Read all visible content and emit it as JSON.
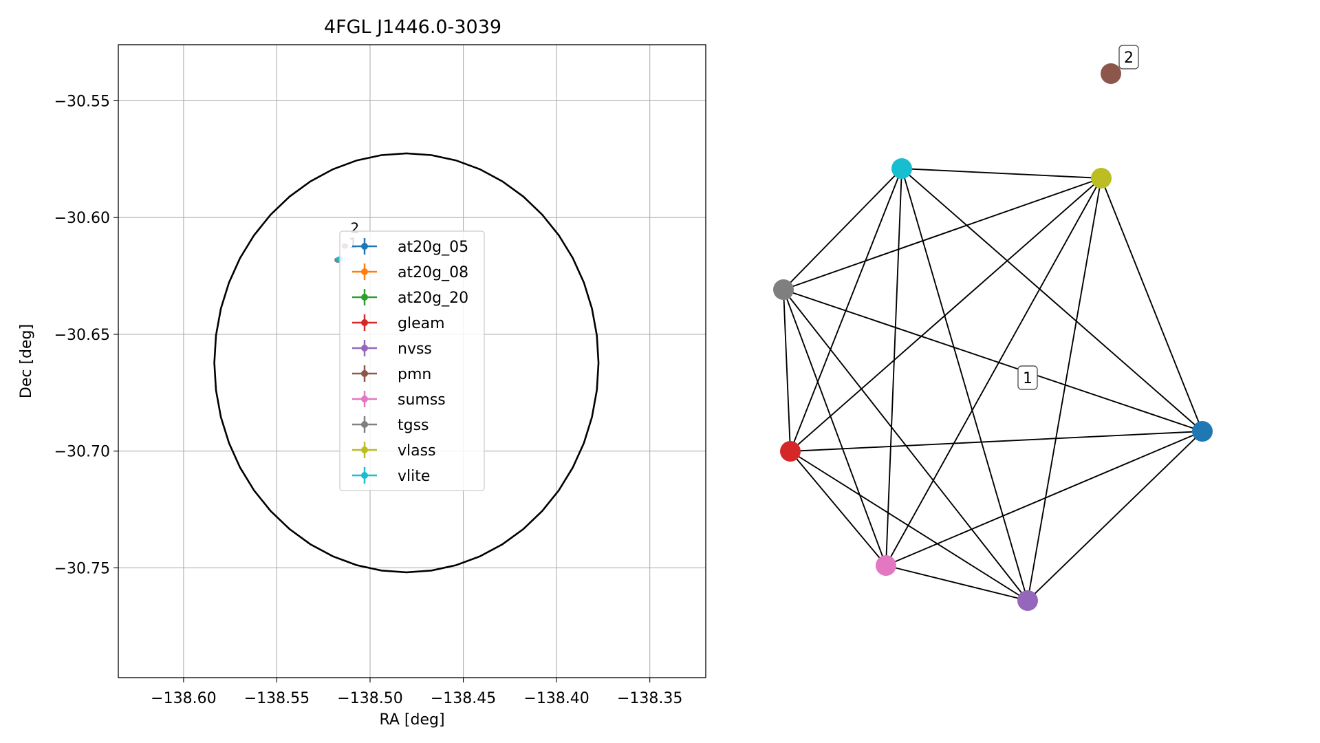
{
  "chart_data": [
    {
      "type": "scatter",
      "title": "4FGL J1446.0-3039",
      "xlabel": "RA [deg]",
      "ylabel": "Dec [deg]",
      "xlim": [
        -138.635,
        -138.32
      ],
      "ylim": [
        -30.797,
        -30.526
      ],
      "xticks": [
        -138.6,
        -138.55,
        -138.5,
        -138.45,
        -138.4,
        -138.35
      ],
      "xtick_labels": [
        "−138.60",
        "−138.55",
        "−138.50",
        "−138.45",
        "−138.40",
        "−138.35"
      ],
      "yticks": [
        -30.55,
        -30.6,
        -30.65,
        -30.7,
        -30.75
      ],
      "ytick_labels": [
        "−30.55",
        "−30.60",
        "−30.65",
        "−30.70",
        "−30.75"
      ],
      "grid": true,
      "legend_position": "center",
      "ellipse": {
        "center": [
          -138.4805,
          -30.6622
        ],
        "radius_ra": 0.103,
        "radius_dec": 0.0897,
        "color": "#000000"
      },
      "series": [
        {
          "name": "at20g_05",
          "color": "#1f77b4",
          "points": []
        },
        {
          "name": "at20g_08",
          "color": "#ff7f0e",
          "points": []
        },
        {
          "name": "at20g_20",
          "color": "#2ca02c",
          "points": []
        },
        {
          "name": "gleam",
          "color": "#d62728",
          "points": []
        },
        {
          "name": "nvss",
          "color": "#9467bd",
          "points": []
        },
        {
          "name": "pmn",
          "color": "#8c564b",
          "points": [
            [
              -138.5135,
              -30.6122
            ]
          ]
        },
        {
          "name": "sumss",
          "color": "#e377c2",
          "points": []
        },
        {
          "name": "tgss",
          "color": "#7f7f7f",
          "points": [
            [
              -138.5173,
              -30.6182
            ]
          ]
        },
        {
          "name": "vlass",
          "color": "#bcbd22",
          "points": []
        },
        {
          "name": "vlite",
          "color": "#17becf",
          "points": [
            [
              -138.5163,
              -30.6178
            ]
          ]
        }
      ],
      "cluster_labels": [
        {
          "text": "2",
          "ra": -138.5105,
          "dec": -30.6065
        },
        {
          "text": "1",
          "ra": -138.5115,
          "dec": -30.613
        }
      ]
    },
    {
      "type": "network",
      "nodes": [
        {
          "id": "at20g_05",
          "color": "#1f77b4"
        },
        {
          "id": "nvss",
          "color": "#9467bd"
        },
        {
          "id": "sumss",
          "color": "#e377c2"
        },
        {
          "id": "gleam",
          "color": "#d62728"
        },
        {
          "id": "tgss",
          "color": "#7f7f7f"
        },
        {
          "id": "vlite",
          "color": "#17becf"
        },
        {
          "id": "vlass",
          "color": "#bcbd22"
        },
        {
          "id": "pmn",
          "color": "#8c564b"
        }
      ],
      "edges": [
        [
          "at20g_05",
          "nvss"
        ],
        [
          "at20g_05",
          "sumss"
        ],
        [
          "at20g_05",
          "gleam"
        ],
        [
          "at20g_05",
          "tgss"
        ],
        [
          "at20g_05",
          "vlite"
        ],
        [
          "at20g_05",
          "vlass"
        ],
        [
          "nvss",
          "sumss"
        ],
        [
          "nvss",
          "gleam"
        ],
        [
          "nvss",
          "tgss"
        ],
        [
          "nvss",
          "vlite"
        ],
        [
          "nvss",
          "vlass"
        ],
        [
          "sumss",
          "gleam"
        ],
        [
          "sumss",
          "tgss"
        ],
        [
          "sumss",
          "vlite"
        ],
        [
          "sumss",
          "vlass"
        ],
        [
          "gleam",
          "tgss"
        ],
        [
          "gleam",
          "vlite"
        ],
        [
          "gleam",
          "vlass"
        ],
        [
          "tgss",
          "vlite"
        ],
        [
          "tgss",
          "vlass"
        ],
        [
          "vlite",
          "vlass"
        ]
      ],
      "labels": [
        {
          "text": "1",
          "group": [
            "at20g_05",
            "nvss",
            "sumss",
            "gleam",
            "tgss",
            "vlite",
            "vlass"
          ]
        },
        {
          "text": "2",
          "group": [
            "pmn"
          ]
        }
      ]
    }
  ]
}
